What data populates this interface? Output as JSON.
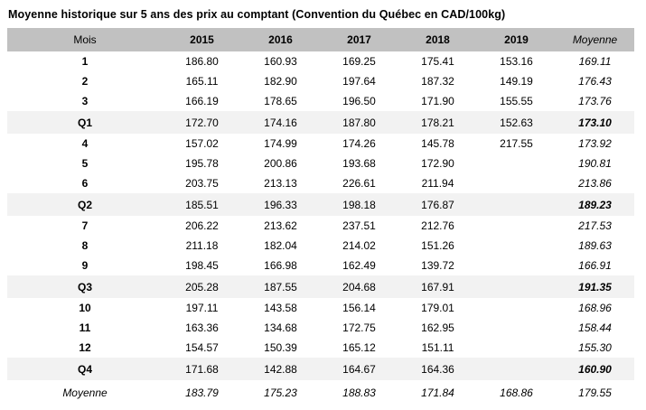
{
  "title": "Moyenne historique sur 5 ans des prix au comptant (Convention du Québec en CAD/100kg)",
  "colors": {
    "header_bg": "#c1c1c1",
    "quarter_row_bg": "#f2f2f2",
    "text": "#000000",
    "background": "#ffffff"
  },
  "table": {
    "columns": [
      "Mois",
      "2015",
      "2016",
      "2017",
      "2018",
      "2019",
      "Moyenne"
    ],
    "rows": [
      {
        "label": "1",
        "type": "month",
        "values": [
          "186.80",
          "160.93",
          "169.25",
          "175.41",
          "153.16",
          "169.11"
        ]
      },
      {
        "label": "2",
        "type": "month",
        "values": [
          "165.11",
          "182.90",
          "197.64",
          "187.32",
          "149.19",
          "176.43"
        ]
      },
      {
        "label": "3",
        "type": "month",
        "values": [
          "166.19",
          "178.65",
          "196.50",
          "171.90",
          "155.55",
          "173.76"
        ]
      },
      {
        "label": "Q1",
        "type": "quarter",
        "values": [
          "172.70",
          "174.16",
          "187.80",
          "178.21",
          "152.63",
          "173.10"
        ]
      },
      {
        "label": "4",
        "type": "month",
        "values": [
          "157.02",
          "174.99",
          "174.26",
          "145.78",
          "217.55",
          "173.92"
        ]
      },
      {
        "label": "5",
        "type": "month",
        "values": [
          "195.78",
          "200.86",
          "193.68",
          "172.90",
          "",
          "190.81"
        ]
      },
      {
        "label": "6",
        "type": "month",
        "values": [
          "203.75",
          "213.13",
          "226.61",
          "211.94",
          "",
          "213.86"
        ]
      },
      {
        "label": "Q2",
        "type": "quarter",
        "values": [
          "185.51",
          "196.33",
          "198.18",
          "176.87",
          "",
          "189.23"
        ]
      },
      {
        "label": "7",
        "type": "month",
        "values": [
          "206.22",
          "213.62",
          "237.51",
          "212.76",
          "",
          "217.53"
        ]
      },
      {
        "label": "8",
        "type": "month",
        "values": [
          "211.18",
          "182.04",
          "214.02",
          "151.26",
          "",
          "189.63"
        ]
      },
      {
        "label": "9",
        "type": "month",
        "values": [
          "198.45",
          "166.98",
          "162.49",
          "139.72",
          "",
          "166.91"
        ]
      },
      {
        "label": "Q3",
        "type": "quarter",
        "values": [
          "205.28",
          "187.55",
          "204.68",
          "167.91",
          "",
          "191.35"
        ]
      },
      {
        "label": "10",
        "type": "month",
        "values": [
          "197.11",
          "143.58",
          "156.14",
          "179.01",
          "",
          "168.96"
        ]
      },
      {
        "label": "11",
        "type": "month",
        "values": [
          "163.36",
          "134.68",
          "172.75",
          "162.95",
          "",
          "158.44"
        ]
      },
      {
        "label": "12",
        "type": "month",
        "values": [
          "154.57",
          "150.39",
          "165.12",
          "151.11",
          "",
          "155.30"
        ]
      },
      {
        "label": "Q4",
        "type": "quarter",
        "values": [
          "171.68",
          "142.88",
          "164.67",
          "164.36",
          "",
          "160.90"
        ]
      },
      {
        "label": "Moyenne",
        "type": "average",
        "values": [
          "183.79",
          "175.23",
          "188.83",
          "171.84",
          "168.86",
          "179.55"
        ]
      }
    ]
  }
}
